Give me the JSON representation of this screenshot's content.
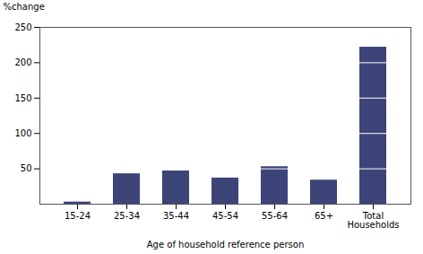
{
  "chart_data": {
    "type": "bar",
    "categories": [
      "15-24",
      "25-34",
      "35-44",
      "45-54",
      "55-64",
      "65+",
      "Total\nHouseholds"
    ],
    "values": [
      3,
      43,
      47,
      37,
      53,
      34,
      222
    ],
    "color": "#3d4478",
    "xlabel": "Age of household reference person",
    "ylabel": "%change",
    "ylim": [
      0,
      250
    ],
    "yticks": [
      50,
      100,
      150,
      200,
      250
    ],
    "white_lines": [
      [],
      [],
      [],
      [],
      [
        50
      ],
      [],
      [
        50,
        100,
        150,
        200
      ]
    ],
    "grid": false
  }
}
